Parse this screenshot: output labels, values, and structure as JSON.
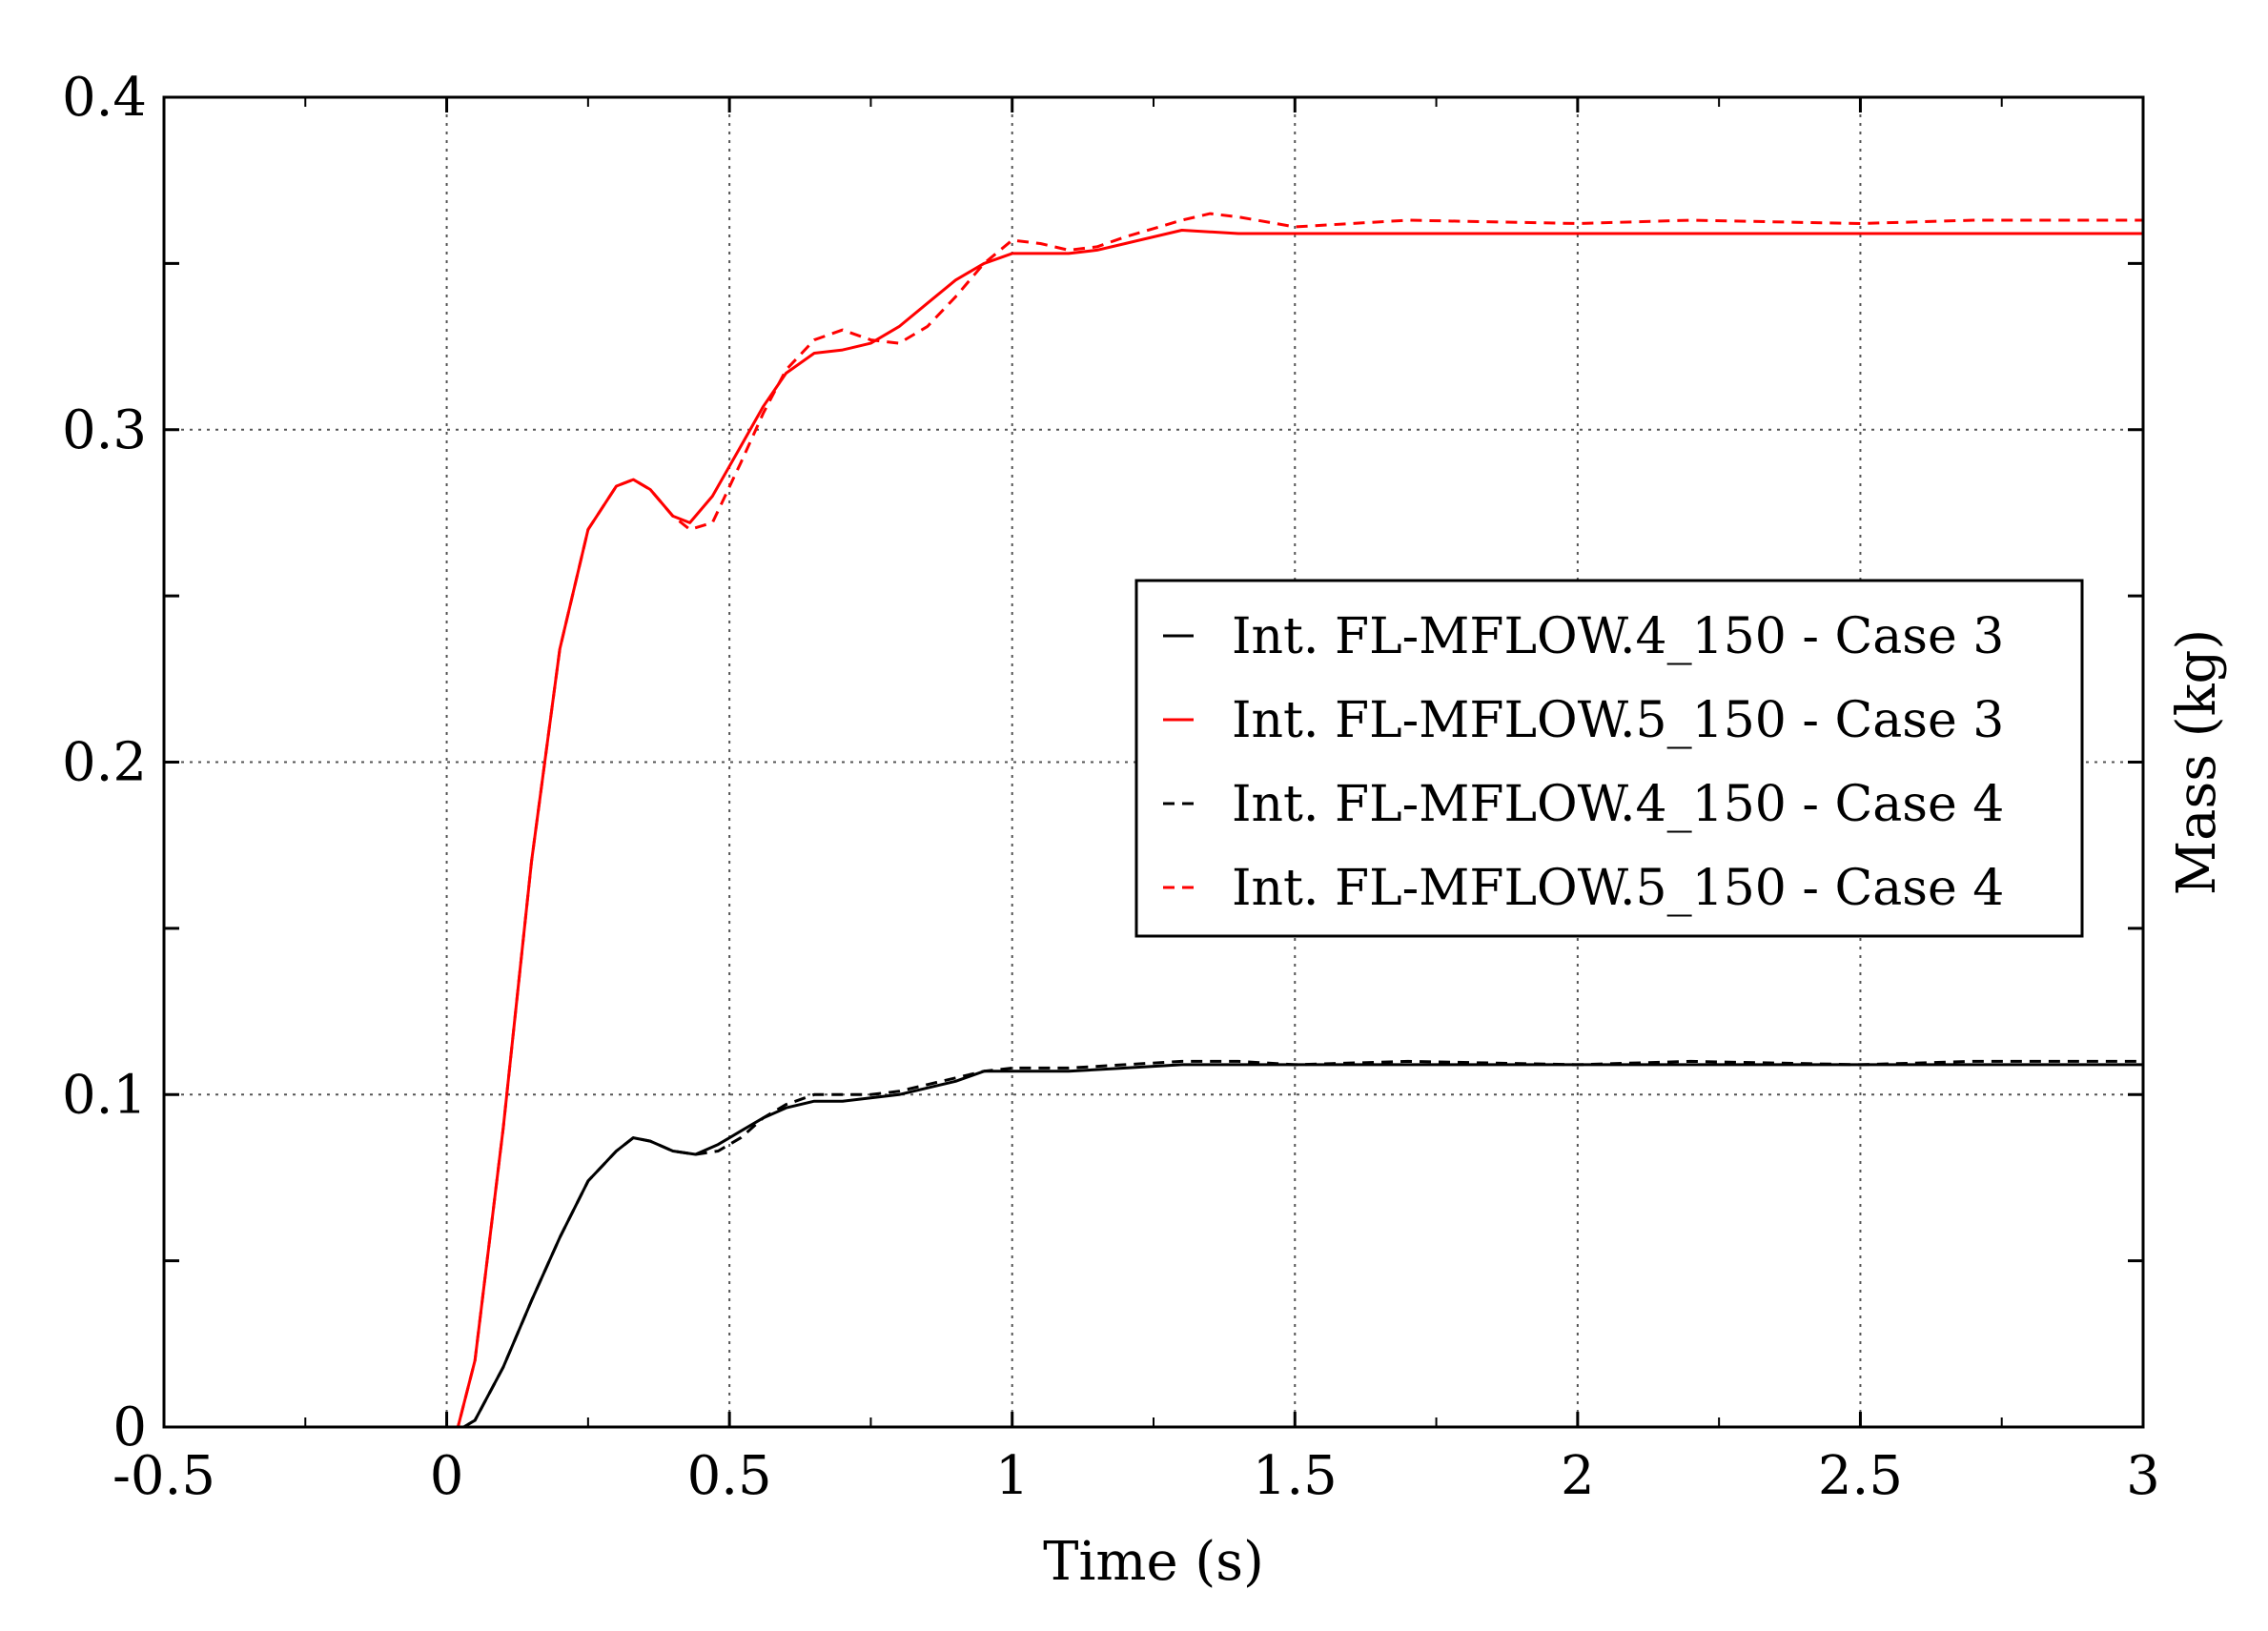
{
  "chart_data": {
    "type": "line",
    "title": "",
    "xlabel": "Time (s)",
    "ylabel": "Mass (kg)",
    "xlim": [
      -0.5,
      3
    ],
    "ylim": [
      0,
      0.4
    ],
    "x_ticks": [
      -0.5,
      0,
      0.5,
      1,
      1.5,
      2,
      2.5,
      3
    ],
    "x_tick_labels": [
      "-0.5",
      "0",
      "0.5",
      "1",
      "1.5",
      "2",
      "2.5",
      "3"
    ],
    "y_ticks": [
      0,
      0.05,
      0.1,
      0.15,
      0.2,
      0.25,
      0.3,
      0.35,
      0.4
    ],
    "y_tick_labels": [
      "0",
      "",
      "0.1",
      "",
      "0.2",
      "",
      "0.3",
      "",
      "0.4"
    ],
    "grid": true,
    "legend_position": "right-middle",
    "ylabel_position": "right",
    "series": [
      {
        "name": "Int. FL-MFLOW.4_150 - Case 3",
        "color": "#000000",
        "dash": "solid",
        "x": [
          -0.5,
          0.03,
          0.05,
          0.1,
          0.15,
          0.2,
          0.25,
          0.3,
          0.33,
          0.36,
          0.4,
          0.44,
          0.48,
          0.52,
          0.56,
          0.6,
          0.65,
          0.7,
          0.75,
          0.8,
          0.85,
          0.9,
          0.95,
          1.0,
          1.05,
          1.1,
          1.2,
          1.3,
          1.35,
          1.4,
          1.5,
          1.7,
          2.0,
          2.2,
          2.5,
          2.7,
          3.0
        ],
        "y": [
          0,
          0,
          0.002,
          0.018,
          0.038,
          0.057,
          0.074,
          0.083,
          0.087,
          0.086,
          0.083,
          0.082,
          0.085,
          0.089,
          0.093,
          0.096,
          0.098,
          0.098,
          0.099,
          0.1,
          0.102,
          0.104,
          0.107,
          0.107,
          0.107,
          0.107,
          0.108,
          0.109,
          0.109,
          0.109,
          0.109,
          0.109,
          0.109,
          0.109,
          0.109,
          0.109,
          0.109
        ]
      },
      {
        "name": "Int. FL-MFLOW.5_150 - Case 3",
        "color": "#ff0000",
        "dash": "solid",
        "x": [
          -0.5,
          0.02,
          0.05,
          0.1,
          0.15,
          0.2,
          0.25,
          0.3,
          0.33,
          0.36,
          0.4,
          0.43,
          0.47,
          0.52,
          0.56,
          0.6,
          0.65,
          0.7,
          0.75,
          0.8,
          0.85,
          0.9,
          0.95,
          1.0,
          1.05,
          1.1,
          1.15,
          1.2,
          1.3,
          1.4,
          1.5,
          1.7,
          2.0,
          2.2,
          2.5,
          2.7,
          3.0
        ],
        "y": [
          0,
          0,
          0.02,
          0.09,
          0.17,
          0.234,
          0.27,
          0.283,
          0.285,
          0.282,
          0.274,
          0.272,
          0.28,
          0.295,
          0.307,
          0.317,
          0.323,
          0.324,
          0.326,
          0.331,
          0.338,
          0.345,
          0.35,
          0.353,
          0.353,
          0.353,
          0.354,
          0.356,
          0.36,
          0.359,
          0.359,
          0.359,
          0.359,
          0.359,
          0.359,
          0.359,
          0.359
        ]
      },
      {
        "name": "Int. FL-MFLOW.4_150 - Case 4",
        "color": "#000000",
        "dash": "dashed",
        "x": [
          -0.5,
          0.03,
          0.05,
          0.1,
          0.15,
          0.2,
          0.25,
          0.3,
          0.33,
          0.36,
          0.4,
          0.44,
          0.48,
          0.52,
          0.56,
          0.6,
          0.65,
          0.7,
          0.75,
          0.8,
          0.85,
          0.9,
          0.95,
          1.0,
          1.05,
          1.1,
          1.2,
          1.3,
          1.35,
          1.4,
          1.5,
          1.7,
          2.0,
          2.2,
          2.5,
          2.7,
          3.0
        ],
        "y": [
          0,
          0,
          0.002,
          0.018,
          0.038,
          0.057,
          0.074,
          0.083,
          0.087,
          0.086,
          0.083,
          0.082,
          0.083,
          0.087,
          0.093,
          0.097,
          0.1,
          0.1,
          0.1,
          0.101,
          0.103,
          0.105,
          0.107,
          0.108,
          0.108,
          0.108,
          0.109,
          0.11,
          0.11,
          0.11,
          0.109,
          0.11,
          0.109,
          0.11,
          0.109,
          0.11,
          0.11
        ]
      },
      {
        "name": "Int. FL-MFLOW.5_150 - Case 4",
        "color": "#ff0000",
        "dash": "dashed",
        "x": [
          -0.5,
          0.02,
          0.05,
          0.1,
          0.15,
          0.2,
          0.25,
          0.3,
          0.33,
          0.36,
          0.4,
          0.43,
          0.47,
          0.52,
          0.56,
          0.6,
          0.65,
          0.7,
          0.75,
          0.8,
          0.85,
          0.9,
          0.95,
          1.0,
          1.05,
          1.1,
          1.15,
          1.2,
          1.3,
          1.35,
          1.4,
          1.5,
          1.7,
          2.0,
          2.2,
          2.5,
          2.7,
          3.0
        ],
        "y": [
          0,
          0,
          0.02,
          0.09,
          0.17,
          0.234,
          0.27,
          0.283,
          0.285,
          0.282,
          0.274,
          0.27,
          0.272,
          0.29,
          0.305,
          0.318,
          0.327,
          0.33,
          0.327,
          0.326,
          0.331,
          0.34,
          0.35,
          0.357,
          0.356,
          0.354,
          0.355,
          0.358,
          0.363,
          0.365,
          0.364,
          0.361,
          0.363,
          0.362,
          0.363,
          0.362,
          0.363,
          0.363
        ]
      }
    ]
  }
}
